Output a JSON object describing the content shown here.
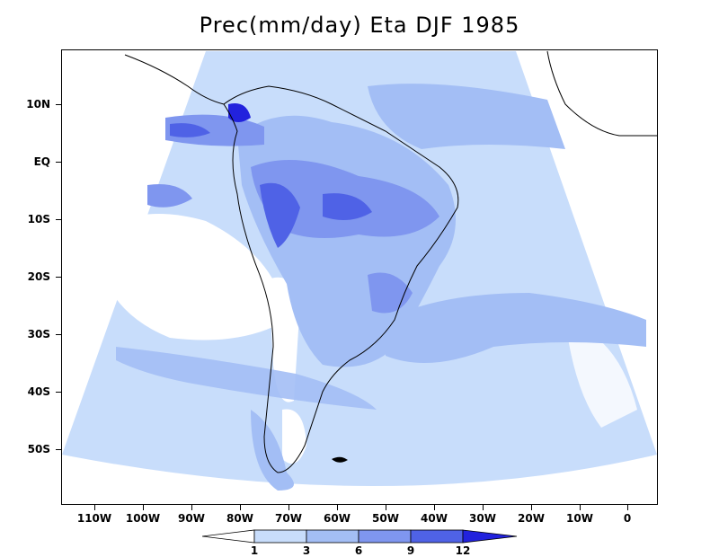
{
  "title": "Prec(mm/day) Eta DJF 1985",
  "lat_labels": [
    "10N",
    "EQ",
    "10S",
    "20S",
    "30S",
    "40S",
    "50S"
  ],
  "lon_labels": [
    "110W",
    "100W",
    "90W",
    "80W",
    "70W",
    "60W",
    "50W",
    "40W",
    "30W",
    "20W",
    "10W",
    "0"
  ],
  "colorbar": {
    "levels": [
      "1",
      "3",
      "6",
      "9",
      "12"
    ],
    "colors": [
      "#ffffff",
      "#c8ddfb",
      "#a3bef5",
      "#7f96ef",
      "#4f62e6",
      "#2222dd"
    ]
  },
  "colors": {
    "domain_base": "#c8ddfb",
    "level_6": "#a3bef5",
    "level_9": "#7f96ef",
    "level_12": "#4f62e6",
    "max": "#2222dd",
    "dry": "#ffffff",
    "coast": "#000000"
  }
}
